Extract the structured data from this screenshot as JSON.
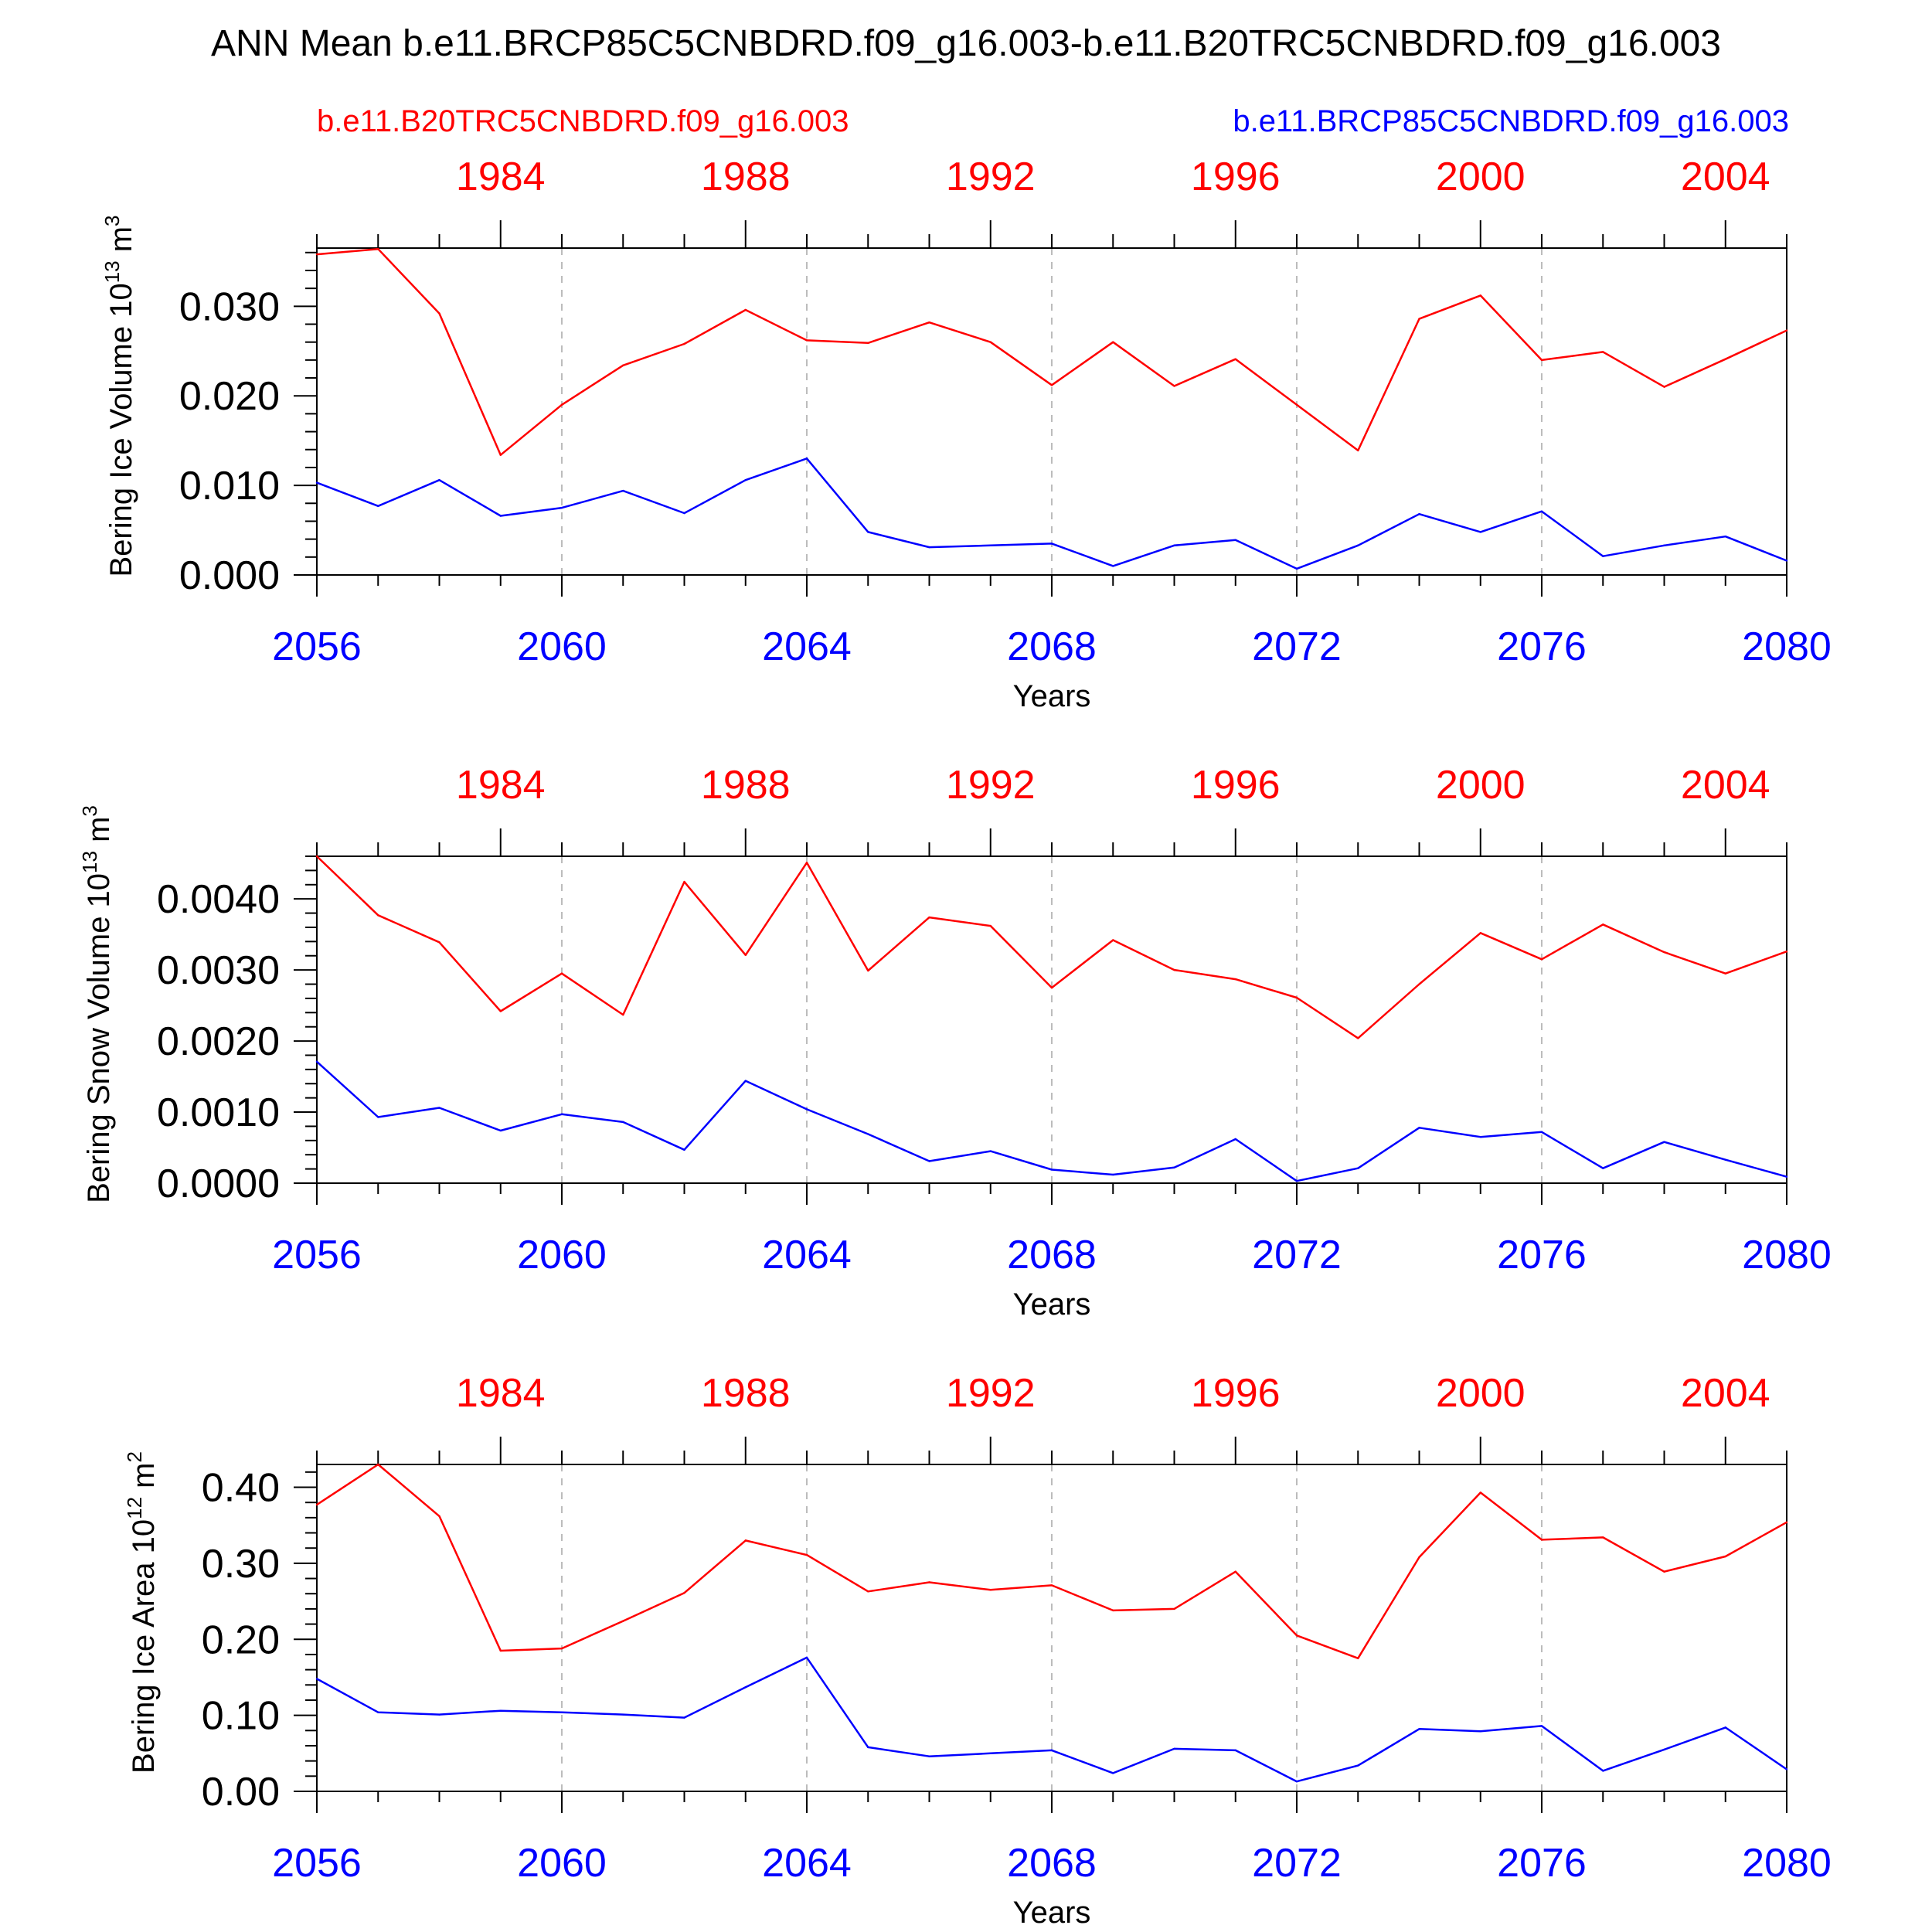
{
  "figure": {
    "title": "ANN Mean b.e11.BRCP85C5CNBDRD.f09_g16.003-b.e11.B20TRC5CNBDRD.f09_g16.003",
    "legend_left": "b.e11.B20TRC5CNBDRD.f09_g16.003",
    "legend_right": "b.e11.BRCP85C5CNBDRD.f09_g16.003",
    "colors": {
      "historical": "#ff0000",
      "future": "#0000ff",
      "axis": "#000000"
    }
  },
  "chart_data": [
    {
      "type": "line",
      "ylabel": "Bering Ice Volume",
      "yunit_mult": "10",
      "yunit_exp": "13",
      "yunit_sym": "m",
      "yunit_pow": "3",
      "xlabel": "Years",
      "xlim": [
        2056,
        2080
      ],
      "top_xlim": [
        1981,
        2005
      ],
      "ylim": [
        0,
        0.0365
      ],
      "yticks": [
        0.0,
        0.01,
        0.02,
        0.03
      ],
      "ytick_labels": [
        "0.000",
        "0.010",
        "0.020",
        "0.030"
      ],
      "xticks": [
        2056,
        2060,
        2064,
        2068,
        2072,
        2076,
        2080
      ],
      "xtick_labels": [
        "2056",
        "2060",
        "2064",
        "2068",
        "2072",
        "2076",
        "2080"
      ],
      "top_xticks": [
        1984,
        1988,
        1992,
        1996,
        2000,
        2004
      ],
      "top_xtick_labels": [
        "1984",
        "1988",
        "1992",
        "1996",
        "2000",
        "2004"
      ],
      "grid": "dashed-vertical",
      "x": [
        2056,
        2057,
        2058,
        2059,
        2060,
        2061,
        2062,
        2063,
        2064,
        2065,
        2066,
        2067,
        2068,
        2069,
        2070,
        2071,
        2072,
        2073,
        2074,
        2075,
        2076,
        2077,
        2078,
        2079,
        2080
      ],
      "series": [
        {
          "name": "b.e11.B20TRC5CNBDRD.f09_g16.003",
          "color": "#ff0000",
          "values": [
            0.0358,
            0.0364,
            0.0292,
            0.0134,
            0.019,
            0.0234,
            0.0258,
            0.0296,
            0.0262,
            0.0259,
            0.0282,
            0.026,
            0.0212,
            0.026,
            0.0211,
            0.0241,
            0.019,
            0.0139,
            0.0286,
            0.0312,
            0.024,
            0.0249,
            0.021,
            0.0241,
            0.0273
          ]
        },
        {
          "name": "b.e11.BRCP85C5CNBDRD.f09_g16.003",
          "color": "#0000ff",
          "values": [
            0.0103,
            0.0077,
            0.0106,
            0.0066,
            0.0075,
            0.0094,
            0.0069,
            0.0106,
            0.013,
            0.0048,
            0.0031,
            0.0033,
            0.0035,
            0.001,
            0.0033,
            0.0039,
            0.0007,
            0.0033,
            0.0068,
            0.0048,
            0.0071,
            0.0021,
            0.0033,
            0.0043,
            0.0016
          ]
        }
      ]
    },
    {
      "type": "line",
      "ylabel": "Bering Snow Volume",
      "yunit_mult": "10",
      "yunit_exp": "13",
      "yunit_sym": "m",
      "yunit_pow": "3",
      "xlabel": "Years",
      "xlim": [
        2056,
        2080
      ],
      "top_xlim": [
        1981,
        2005
      ],
      "ylim": [
        0,
        0.0046
      ],
      "yticks": [
        0.0,
        0.001,
        0.002,
        0.003,
        0.004
      ],
      "ytick_labels": [
        "0.0000",
        "0.0010",
        "0.0020",
        "0.0030",
        "0.0040"
      ],
      "xticks": [
        2056,
        2060,
        2064,
        2068,
        2072,
        2076,
        2080
      ],
      "xtick_labels": [
        "2056",
        "2060",
        "2064",
        "2068",
        "2072",
        "2076",
        "2080"
      ],
      "top_xticks": [
        1984,
        1988,
        1992,
        1996,
        2000,
        2004
      ],
      "top_xtick_labels": [
        "1984",
        "1988",
        "1992",
        "1996",
        "2000",
        "2004"
      ],
      "grid": "dashed-vertical",
      "x": [
        2056,
        2057,
        2058,
        2059,
        2060,
        2061,
        2062,
        2063,
        2064,
        2065,
        2066,
        2067,
        2068,
        2069,
        2070,
        2071,
        2072,
        2073,
        2074,
        2075,
        2076,
        2077,
        2078,
        2079,
        2080
      ],
      "series": [
        {
          "name": "b.e11.B20TRC5CNBDRD.f09_g16.003",
          "color": "#ff0000",
          "values": [
            0.0046,
            0.00377,
            0.00339,
            0.00242,
            0.00295,
            0.00237,
            0.00424,
            0.00321,
            0.00451,
            0.00299,
            0.00374,
            0.00362,
            0.00275,
            0.00342,
            0.003,
            0.00287,
            0.00261,
            0.00204,
            0.0028,
            0.00352,
            0.00315,
            0.00364,
            0.00325,
            0.00295,
            0.00326
          ]
        },
        {
          "name": "b.e11.BRCP85C5CNBDRD.f09_g16.003",
          "color": "#0000ff",
          "values": [
            0.00171,
            0.00093,
            0.00106,
            0.00074,
            0.00097,
            0.00086,
            0.00047,
            0.00144,
            0.00104,
            0.00069,
            0.00031,
            0.00045,
            0.00019,
            0.00012,
            0.00022,
            0.00062,
            3e-05,
            0.00021,
            0.00078,
            0.00065,
            0.00072,
            0.00021,
            0.00058,
            0.00033,
            9e-05
          ]
        }
      ]
    },
    {
      "type": "line",
      "ylabel": "Bering Ice Area",
      "yunit_mult": "10",
      "yunit_exp": "12",
      "yunit_sym": "m",
      "yunit_pow": "2",
      "xlabel": "Years",
      "xlim": [
        2056,
        2080
      ],
      "top_xlim": [
        1981,
        2005
      ],
      "ylim": [
        0,
        0.43
      ],
      "yticks": [
        0.0,
        0.1,
        0.2,
        0.3,
        0.4
      ],
      "ytick_labels": [
        "0.00",
        "0.10",
        "0.20",
        "0.30",
        "0.40"
      ],
      "xticks": [
        2056,
        2060,
        2064,
        2068,
        2072,
        2076,
        2080
      ],
      "xtick_labels": [
        "2056",
        "2060",
        "2064",
        "2068",
        "2072",
        "2076",
        "2080"
      ],
      "top_xticks": [
        1984,
        1988,
        1992,
        1996,
        2000,
        2004
      ],
      "top_xtick_labels": [
        "1984",
        "1988",
        "1992",
        "1996",
        "2000",
        "2004"
      ],
      "grid": "dashed-vertical",
      "x": [
        2056,
        2057,
        2058,
        2059,
        2060,
        2061,
        2062,
        2063,
        2064,
        2065,
        2066,
        2067,
        2068,
        2069,
        2070,
        2071,
        2072,
        2073,
        2074,
        2075,
        2076,
        2077,
        2078,
        2079,
        2080
      ],
      "series": [
        {
          "name": "b.e11.B20TRC5CNBDRD.f09_g16.003",
          "color": "#ff0000",
          "values": [
            0.377,
            0.43,
            0.362,
            0.185,
            0.188,
            0.224,
            0.261,
            0.33,
            0.311,
            0.263,
            0.275,
            0.265,
            0.271,
            0.238,
            0.24,
            0.289,
            0.205,
            0.175,
            0.308,
            0.393,
            0.331,
            0.334,
            0.289,
            0.309,
            0.354
          ]
        },
        {
          "name": "b.e11.BRCP85C5CNBDRD.f09_g16.003",
          "color": "#0000ff",
          "values": [
            0.148,
            0.104,
            0.101,
            0.106,
            0.104,
            0.101,
            0.097,
            0.137,
            0.176,
            0.058,
            0.046,
            0.05,
            0.054,
            0.024,
            0.056,
            0.054,
            0.013,
            0.034,
            0.082,
            0.079,
            0.086,
            0.027,
            0.055,
            0.084,
            0.029
          ]
        }
      ]
    }
  ]
}
